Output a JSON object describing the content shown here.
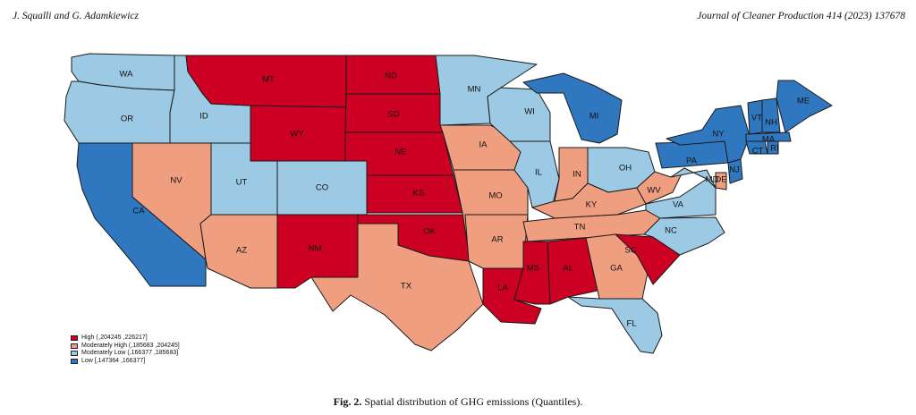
{
  "header": {
    "authors": "J. Squalli and G. Adamkiewicz",
    "journal": "Journal of Cleaner Production 414 (2023) 137678"
  },
  "colors": {
    "high": "#cc0022",
    "moderately_high": "#ef9f80",
    "moderately_low": "#9cc9e3",
    "low": "#2f78c0"
  },
  "legend": [
    {
      "category": "high",
      "label": "High ( ,204245 ,226217]"
    },
    {
      "category": "moderately_high",
      "label": "Moderately High (,185683 ,204245]"
    },
    {
      "category": "moderately_low",
      "label": "Moderately Low (,166377 ,185683]"
    },
    {
      "category": "low",
      "label": "Low [,147364 ,166377]"
    }
  ],
  "states": [
    {
      "abbr": "WA",
      "category": "moderately_low"
    },
    {
      "abbr": "OR",
      "category": "moderately_low"
    },
    {
      "abbr": "CA",
      "category": "low"
    },
    {
      "abbr": "ID",
      "category": "moderately_low"
    },
    {
      "abbr": "NV",
      "category": "moderately_high"
    },
    {
      "abbr": "MT",
      "category": "high"
    },
    {
      "abbr": "WY",
      "category": "high"
    },
    {
      "abbr": "UT",
      "category": "moderately_low"
    },
    {
      "abbr": "AZ",
      "category": "moderately_high"
    },
    {
      "abbr": "CO",
      "category": "moderately_low"
    },
    {
      "abbr": "NM",
      "category": "high"
    },
    {
      "abbr": "ND",
      "category": "high"
    },
    {
      "abbr": "SD",
      "category": "high"
    },
    {
      "abbr": "NE",
      "category": "high"
    },
    {
      "abbr": "KS",
      "category": "high"
    },
    {
      "abbr": "OK",
      "category": "high"
    },
    {
      "abbr": "TX",
      "category": "moderately_high"
    },
    {
      "abbr": "MN",
      "category": "moderately_low"
    },
    {
      "abbr": "IA",
      "category": "moderately_high"
    },
    {
      "abbr": "MO",
      "category": "moderately_high"
    },
    {
      "abbr": "AR",
      "category": "moderately_high"
    },
    {
      "abbr": "LA",
      "category": "high"
    },
    {
      "abbr": "WI",
      "category": "moderately_low"
    },
    {
      "abbr": "IL",
      "category": "moderately_low"
    },
    {
      "abbr": "MI",
      "category": "low"
    },
    {
      "abbr": "IN",
      "category": "moderately_high"
    },
    {
      "abbr": "OH",
      "category": "moderately_low"
    },
    {
      "abbr": "KY",
      "category": "moderately_high"
    },
    {
      "abbr": "TN",
      "category": "moderately_high"
    },
    {
      "abbr": "MS",
      "category": "high"
    },
    {
      "abbr": "AL",
      "category": "high"
    },
    {
      "abbr": "GA",
      "category": "moderately_high"
    },
    {
      "abbr": "FL",
      "category": "moderately_low"
    },
    {
      "abbr": "SC",
      "category": "high"
    },
    {
      "abbr": "NC",
      "category": "moderately_low"
    },
    {
      "abbr": "VA",
      "category": "moderately_low"
    },
    {
      "abbr": "WV",
      "category": "moderately_high"
    },
    {
      "abbr": "PA",
      "category": "low"
    },
    {
      "abbr": "NY",
      "category": "low"
    },
    {
      "abbr": "MD",
      "category": "moderately_low"
    },
    {
      "abbr": "DE",
      "category": "moderately_high"
    },
    {
      "abbr": "NJ",
      "category": "low"
    },
    {
      "abbr": "CT",
      "category": "low"
    },
    {
      "abbr": "RI",
      "category": "low"
    },
    {
      "abbr": "MA",
      "category": "low"
    },
    {
      "abbr": "VT",
      "category": "low"
    },
    {
      "abbr": "NH",
      "category": "low"
    },
    {
      "abbr": "ME",
      "category": "low"
    }
  ],
  "caption": {
    "label": "Fig. 2.",
    "text": "Spatial distribution of GHG emissions (Quantiles)."
  }
}
